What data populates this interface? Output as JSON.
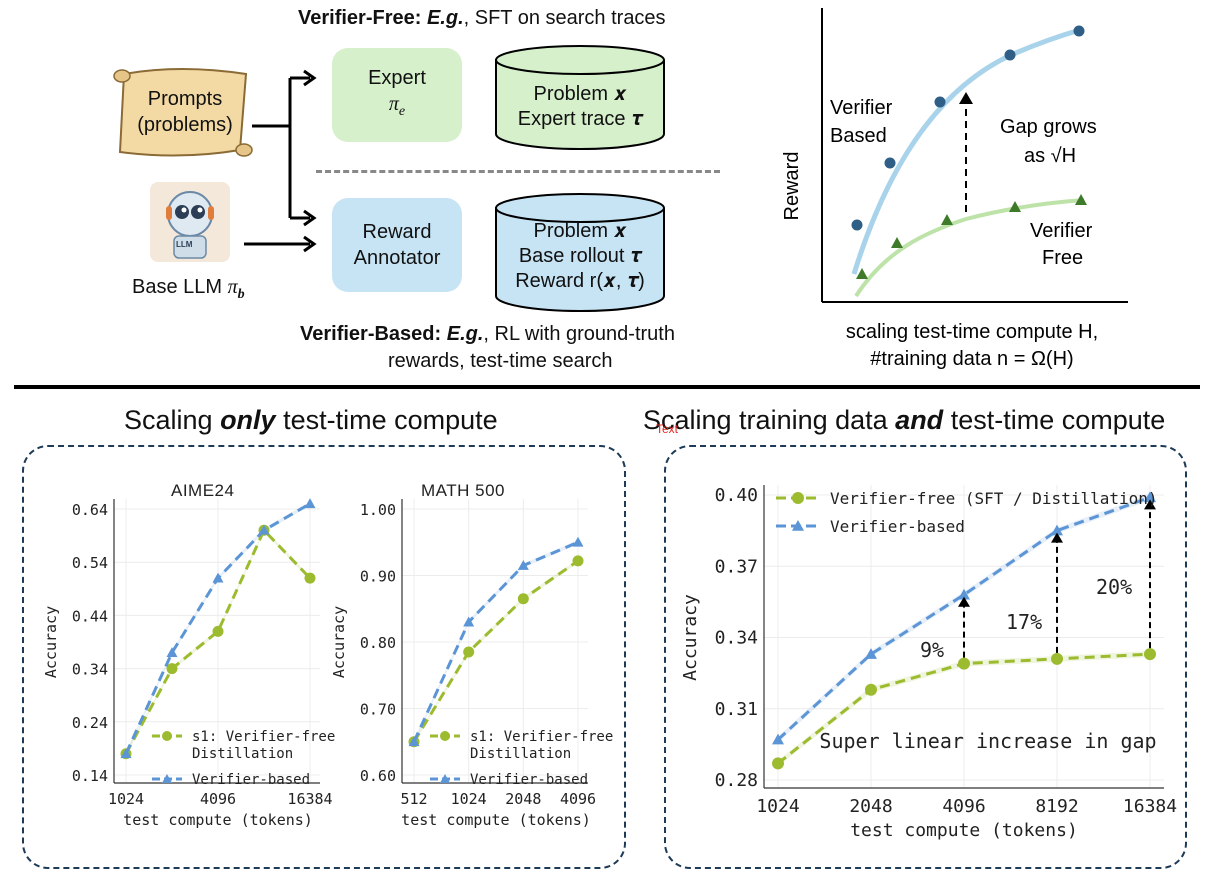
{
  "top": {
    "verifier_free_header_bold": "Verifier-Free:",
    "verifier_free_header_eg": "E.g.",
    "verifier_free_header_rest": ", SFT on search traces",
    "prompts_label_1": "Prompts",
    "prompts_label_2": "(problems)",
    "llm_badge": "LLM",
    "base_llm_label": "Base LLM",
    "base_llm_symbol": "π",
    "base_llm_sub": "b",
    "expert_box_title": "Expert",
    "expert_box_symbol": "π",
    "expert_box_sub": "e",
    "expert_data_line1": "Problem 𝒙",
    "expert_data_line2": "Expert trace 𝝉",
    "reward_box_line1": "Reward",
    "reward_box_line2": "Annotator",
    "base_data_line1": "Problem 𝒙",
    "base_data_line2": "Base rollout 𝝉",
    "base_data_line3": "Reward r(𝒙, 𝝉)",
    "verifier_based_header_bold": "Verifier-Based:",
    "verifier_based_header_eg": "E.g.",
    "verifier_based_header_rest1": ", RL with ground-truth",
    "verifier_based_header_rest2": "rewards, test-time search",
    "schematic": {
      "y_label": "Reward",
      "curve_top_label_1": "Verifier",
      "curve_top_label_2": "Based",
      "gap_label_1": "Gap grows",
      "gap_label_2": "as √H",
      "curve_bottom_label_1": "Verifier",
      "curve_bottom_label_2": "Free",
      "x_label_1": "scaling test-time compute H,",
      "x_label_2": "#training data n = Ω(H)",
      "colors": {
        "verifier_based": "#a9d3ea",
        "verifier_free": "#bde3a8",
        "based_marker": "#2f5f86",
        "free_marker": "#3e7a29"
      }
    }
  },
  "left_section": {
    "title_pre": "Scaling ",
    "title_emph": "only",
    "title_post": " test-time compute"
  },
  "right_section": {
    "title_pre": "Scaling training data ",
    "title_emph": "and",
    "title_post": " test-time compute",
    "overlay_text": "Text"
  },
  "chart_data": [
    {
      "type": "line",
      "title": "AIME24",
      "xlabel": "test compute (tokens)",
      "ylabel": "Accuracy",
      "x_scale": "log2",
      "x_ticks": [
        "1024",
        "4096",
        "16384"
      ],
      "y_ticks": [
        "0.14",
        "0.24",
        "0.34",
        "0.44",
        "0.54",
        "0.64"
      ],
      "ylim": [
        0.14,
        0.64
      ],
      "xlim_log2": [
        10,
        14
      ],
      "series": [
        {
          "name": "s1: Verifier-free Distillation",
          "label_line1": "s1:  Verifier-free",
          "label_line2": "Distillation",
          "color": "#9cbb2e",
          "marker": "circle",
          "x": [
            1024,
            2048,
            4096,
            8192,
            16384
          ],
          "values": [
            0.18,
            0.34,
            0.41,
            0.6,
            0.51
          ]
        },
        {
          "name": "Verifier-based",
          "label_line1": "Verifier-based",
          "label_line2": "",
          "color": "#5b95d6",
          "marker": "triangle",
          "x": [
            1024,
            2048,
            4096,
            8192,
            16384
          ],
          "values": [
            0.18,
            0.37,
            0.51,
            0.6,
            0.65
          ]
        }
      ]
    },
    {
      "type": "line",
      "title": "MATH 500",
      "xlabel": "test compute (tokens)",
      "ylabel": "Accuracy",
      "x_scale": "log2",
      "x_ticks": [
        "512",
        "1024",
        "2048",
        "4096"
      ],
      "y_ticks": [
        "0.60",
        "0.70",
        "0.80",
        "0.90",
        "1.00"
      ],
      "ylim": [
        0.6,
        1.0
      ],
      "xlim_log2": [
        9,
        12
      ],
      "series": [
        {
          "name": "s1: Verifier-free Distillation",
          "label_line1": "s1:  Verifier-free",
          "label_line2": "Distillation",
          "color": "#9cbb2e",
          "marker": "circle",
          "x": [
            512,
            1024,
            2048,
            4096
          ],
          "values": [
            0.65,
            0.785,
            0.865,
            0.922
          ]
        },
        {
          "name": "Verifier-based",
          "label_line1": "Verifier-based",
          "label_line2": "",
          "color": "#5b95d6",
          "marker": "triangle",
          "x": [
            512,
            1024,
            2048,
            4096
          ],
          "values": [
            0.65,
            0.83,
            0.915,
            0.95
          ]
        }
      ]
    },
    {
      "type": "line",
      "title": "",
      "xlabel": "test compute (tokens)",
      "ylabel": "Accuracy",
      "x_scale": "log2",
      "x_ticks": [
        "1024",
        "2048",
        "4096",
        "8192",
        "16384"
      ],
      "y_ticks": [
        "0.28",
        "0.31",
        "0.34",
        "0.37",
        "0.40"
      ],
      "ylim": [
        0.28,
        0.4
      ],
      "xlim_log2": [
        10,
        14
      ],
      "annotation": "Super linear increase in gap",
      "gap_labels": [
        "9%",
        "17%",
        "20%"
      ],
      "series": [
        {
          "name": "Verifier-free (SFT / Distillation)",
          "label_line1": "Verifier-free  (SFT  /  Distillation)",
          "label_line2": "",
          "color": "#9cbb2e",
          "marker": "circle",
          "x": [
            1024,
            2048,
            4096,
            8192,
            16384
          ],
          "values": [
            0.287,
            0.318,
            0.329,
            0.331,
            0.333
          ]
        },
        {
          "name": "Verifier-based",
          "label_line1": "Verifier-based",
          "label_line2": "",
          "color": "#5b95d6",
          "marker": "triangle",
          "x": [
            1024,
            2048,
            4096,
            8192,
            16384
          ],
          "values": [
            0.297,
            0.333,
            0.358,
            0.385,
            0.399
          ]
        }
      ]
    }
  ]
}
